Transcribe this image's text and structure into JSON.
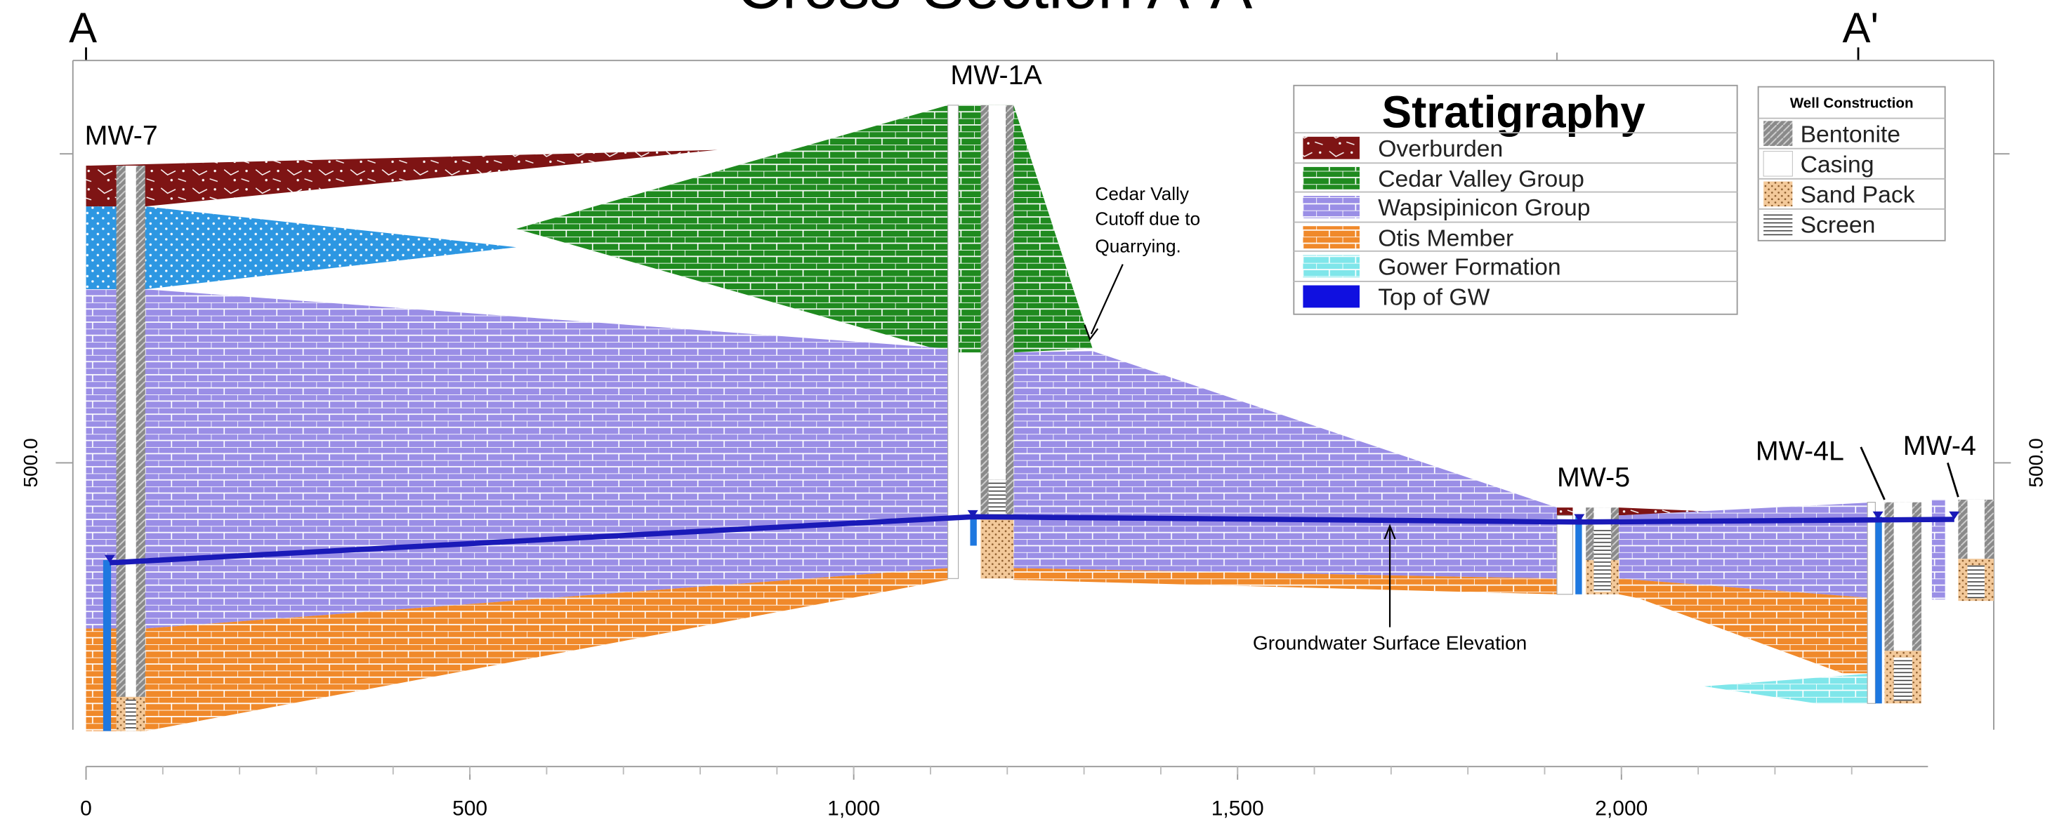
{
  "header": {
    "title": "Cross-Section A-A'",
    "start_label": "A",
    "end_label": "A'"
  },
  "wells": [
    {
      "name": "MW-7"
    },
    {
      "name": "MW-1A"
    },
    {
      "name": "MW-5"
    },
    {
      "name": "MW-4L"
    },
    {
      "name": "MW-4"
    }
  ],
  "annotations": [
    {
      "lines": [
        "Cedar Vally",
        "Cutoff due to",
        "Quarrying."
      ]
    },
    {
      "lines": [
        "Groundwater Surface Elevation"
      ]
    }
  ],
  "stratigraphy_legend": {
    "title": "Stratigraphy",
    "items": [
      "Overburden",
      "Cedar Valley Group",
      "Wapsipinicon Group",
      "Otis Member",
      "Gower Formation",
      "Top of GW"
    ]
  },
  "well_legend": {
    "title": "Well Construction",
    "items": [
      "Bentonite",
      "Casing",
      "Sand Pack",
      "Screen"
    ]
  },
  "axis": {
    "xticks": [
      0,
      500,
      {
        "value": 1000,
        "label": "1,000"
      },
      {
        "value": 1500,
        "label": "1,500"
      },
      {
        "value": 2000,
        "label": "2,000"
      }
    ],
    "elevation_label": "500.0"
  }
}
